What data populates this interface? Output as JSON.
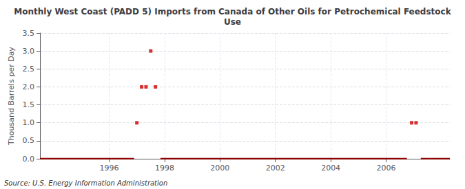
{
  "chart_data": {
    "type": "line",
    "title": "Monthly West Coast (PADD 5) Imports from Canada of Other Oils for Petrochemical Feedstock\nUse",
    "ylabel": "Thousand Barrels per Day",
    "annotation": "Source: U.S. Energy Information Administration",
    "xlim": [
      1993.5,
      2008.3
    ],
    "xticks": [
      1996,
      1998,
      2000,
      2002,
      2004,
      2006
    ],
    "ylim": [
      0,
      3.5
    ],
    "yticks": [
      {
        "value": 0,
        "label": "0.0"
      },
      0.5,
      {
        "value": 1,
        "label": "1.0"
      },
      1.5,
      {
        "value": 2,
        "label": "2.0"
      },
      2.5,
      {
        "value": 3,
        "label": "3.0"
      },
      3.5
    ],
    "grid": true,
    "series": [
      {
        "type": "line",
        "color": "#8b0000",
        "x": [
          1993.5,
          1996.9
        ],
        "values": [
          0.0,
          0.0
        ]
      },
      {
        "type": "line",
        "color": "#8b0000",
        "x": [
          1997.85,
          2006.75
        ],
        "values": [
          0.0,
          0.0
        ]
      },
      {
        "type": "line",
        "color": "#8b0000",
        "x": [
          2007.25,
          2008.3
        ],
        "values": [
          0.0,
          0.0
        ]
      },
      {
        "type": "scatter",
        "color": "#cc0000",
        "marker": "square",
        "x": [
          1997.0,
          1997.17,
          1997.33,
          1997.5,
          1997.67,
          2006.92,
          2007.08
        ],
        "values": [
          1.0,
          2.0,
          2.0,
          3.0,
          2.0,
          1.0,
          1.0
        ]
      }
    ]
  }
}
